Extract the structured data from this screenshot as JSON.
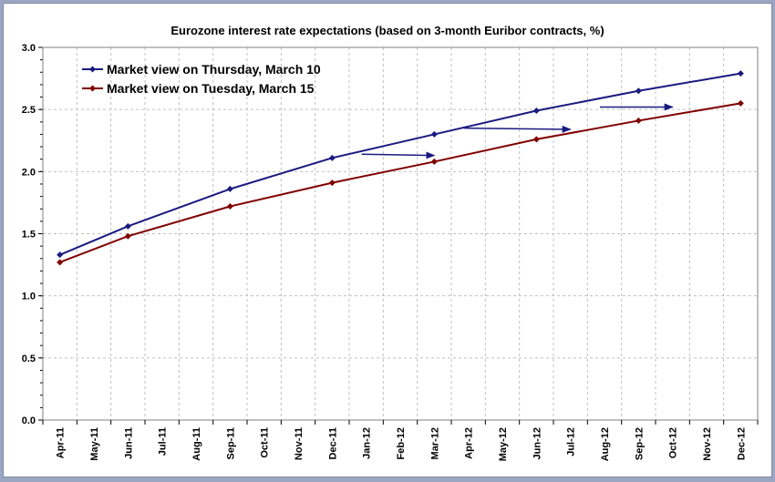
{
  "chart_data": {
    "type": "line",
    "title": "Eurozone interest rate expectations (based on 3-month Euribor contracts, %)",
    "xlabel": "",
    "ylabel": "",
    "ylim": [
      0,
      3.0
    ],
    "yticks": [
      "0.0",
      "0.5",
      "1.0",
      "1.5",
      "2.0",
      "2.5",
      "3.0"
    ],
    "categories": [
      "Apr-11",
      "May-11",
      "Jun-11",
      "Jul-11",
      "Aug-11",
      "Sep-11",
      "Oct-11",
      "Nov-11",
      "Dec-11",
      "Jan-12",
      "Feb-12",
      "Mar-12",
      "Apr-12",
      "May-12",
      "Jun-12",
      "Jul-12",
      "Aug-12",
      "Sep-12",
      "Oct-12",
      "Nov-12",
      "Dec-12"
    ],
    "grid": true,
    "legend_position": "top-left",
    "series": [
      {
        "name": "Market view on Thursday, March 10",
        "color": "#1a1a80",
        "x": [
          "Apr-11",
          "Jun-11",
          "Sep-11",
          "Dec-11",
          "Mar-12",
          "Jun-12",
          "Sep-12",
          "Dec-12"
        ],
        "values": [
          1.33,
          1.56,
          1.86,
          2.11,
          2.3,
          2.49,
          2.65,
          2.79
        ]
      },
      {
        "name": "Market view on Tuesday, March 15",
        "color": "#800000",
        "x": [
          "Apr-11",
          "Jun-11",
          "Sep-11",
          "Dec-11",
          "Mar-12",
          "Jun-12",
          "Sep-12",
          "Dec-12"
        ],
        "values": [
          1.27,
          1.48,
          1.72,
          1.91,
          2.08,
          2.26,
          2.41,
          2.55
        ]
      }
    ],
    "annotations": [
      {
        "type": "arrow",
        "from": [
          "Jan-12",
          2.14
        ],
        "to": [
          "Mar-12",
          2.13
        ]
      },
      {
        "type": "arrow",
        "from": [
          "Apr-12",
          2.35
        ],
        "to": [
          "Jul-12",
          2.34
        ]
      },
      {
        "type": "arrow",
        "from": [
          "Aug-12",
          2.52
        ],
        "to": [
          "Oct-12",
          2.52
        ]
      }
    ]
  }
}
